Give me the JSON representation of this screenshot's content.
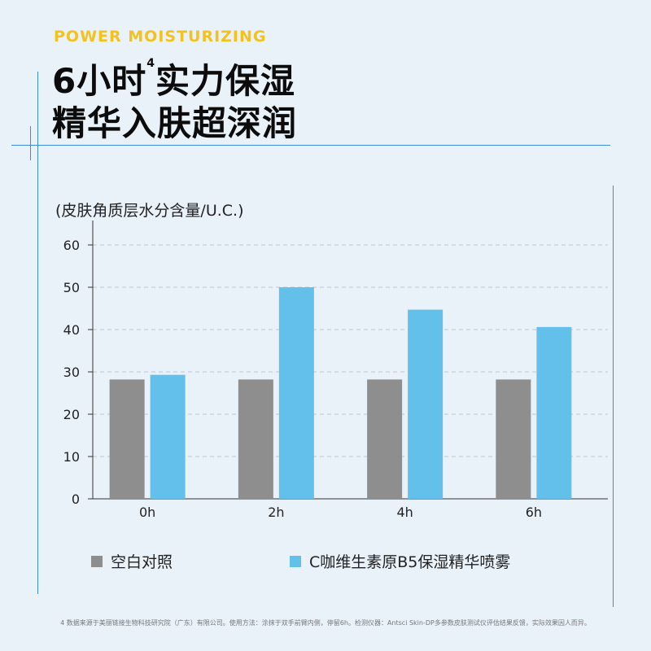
{
  "header": {
    "eyebrow": "POWER MOISTURIZING",
    "line1_a": "6小时",
    "line1_sup": "4",
    "line1_b": "实力保湿",
    "line2": "精华入肤超深润"
  },
  "colors": {
    "eyebrow": "#f4c21a",
    "control": "#8e8e8e",
    "product": "#63c0ea",
    "accent_line": "#3d8fd0"
  },
  "chart_data": {
    "type": "bar",
    "ylabel": "(皮肤角质层水分含量/U.C.)",
    "categories": [
      "0h",
      "2h",
      "4h",
      "6h"
    ],
    "ylim": [
      0,
      60
    ],
    "yticks": [
      0,
      10,
      20,
      30,
      40,
      50,
      60
    ],
    "grid": "horizontal-dashed",
    "legend_position": "bottom",
    "series": [
      {
        "name": "空白对照",
        "values": [
          28.2,
          28.2,
          28.2,
          28.2
        ]
      },
      {
        "name": "C咖维生素原B5保湿精华喷雾",
        "values": [
          29.3,
          50,
          44.7,
          40.6
        ]
      }
    ]
  },
  "footnote": "4 数据来源于美丽链接生物科技研究院（广东）有限公司。使用方法：涂抹于双手前臂内侧，停留6h。检测仪器：Antsci Skin-DP多参数皮肤测试仪评估结果反馈，实际效果因人而异。"
}
